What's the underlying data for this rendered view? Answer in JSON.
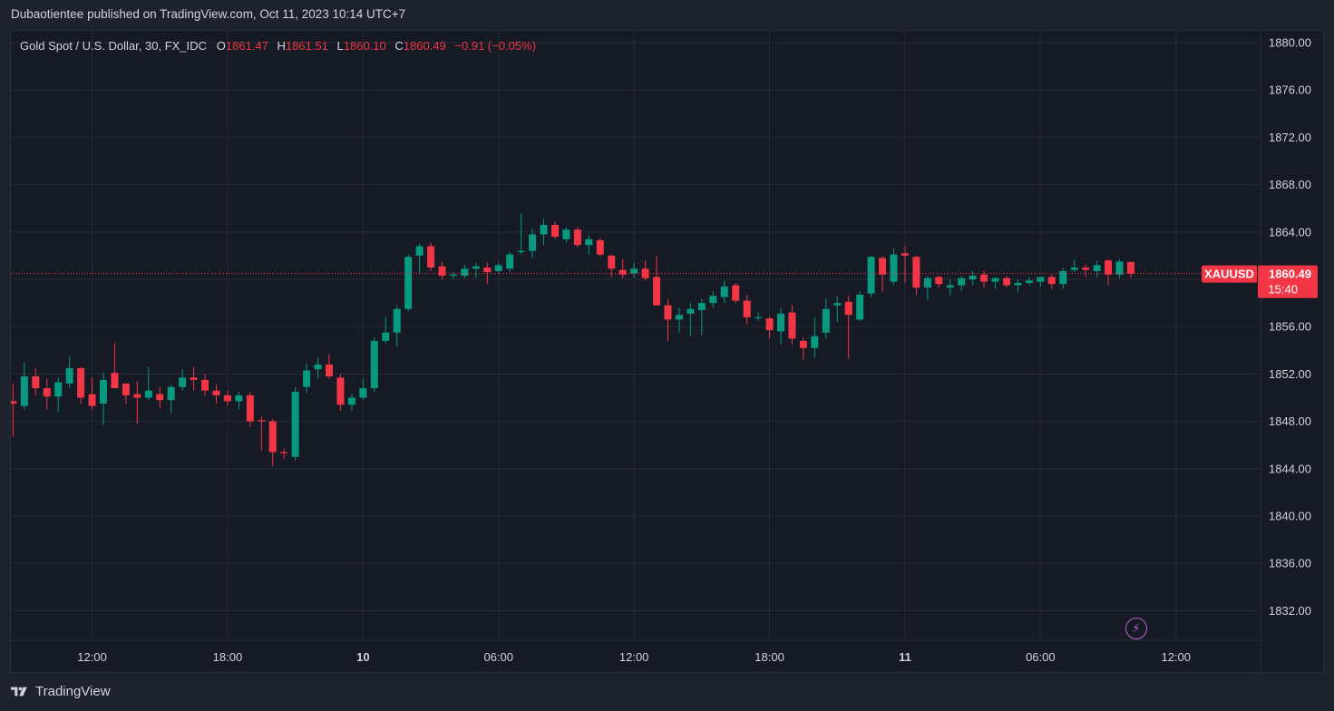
{
  "header": {
    "publish_text": "Dubaotientee published on TradingView.com, Oct 11, 2023 10:14 UTC+7"
  },
  "legend": {
    "symbol": "Gold Spot / U.S. Dollar, 30, FX_IDC",
    "o_label": "O",
    "o_value": "1861.47",
    "h_label": "H",
    "h_value": "1861.51",
    "l_label": "L",
    "l_value": "1860.10",
    "c_label": "C",
    "c_value": "1860.49",
    "change": "−0.91 (−0.05%)"
  },
  "price_tag": {
    "symbol": "XAUUSD",
    "price": "1860.49",
    "countdown": "15:40"
  },
  "footer": {
    "brand": "TradingView"
  },
  "icons": {
    "flash": "lightning-icon",
    "logo": "tradingview-logo"
  },
  "colors": {
    "up": "#089981",
    "down": "#f23645",
    "background": "#161a25",
    "grid": "#262a35",
    "text": "#d1d4dc"
  },
  "chart_data": {
    "type": "candlestick",
    "title": "Gold Spot / U.S. Dollar, 30, FX_IDC",
    "ylim": [
      1829.5,
      1881.0
    ],
    "y_ticks": [
      1832,
      1836,
      1840,
      1844,
      1848,
      1852,
      1856,
      1860,
      1864,
      1868,
      1872,
      1876,
      1880
    ],
    "x_ticks": [
      {
        "label": "12:00",
        "index": 7,
        "bold": false
      },
      {
        "label": "18:00",
        "index": 19,
        "bold": false
      },
      {
        "label": "10",
        "index": 31,
        "bold": true
      },
      {
        "label": "06:00",
        "index": 43,
        "bold": false
      },
      {
        "label": "12:00",
        "index": 55,
        "bold": false
      },
      {
        "label": "18:00",
        "index": 67,
        "bold": false
      },
      {
        "label": "11",
        "index": 79,
        "bold": true
      },
      {
        "label": "06:00",
        "index": 91,
        "bold": false
      },
      {
        "label": "12:00",
        "index": 103,
        "bold": false
      }
    ],
    "grid": true,
    "last_price": 1860.49,
    "candles": [
      {
        "o": 1849.7,
        "h": 1851.2,
        "l": 1846.7,
        "c": 1849.5
      },
      {
        "o": 1849.3,
        "h": 1853.0,
        "l": 1849.0,
        "c": 1851.8
      },
      {
        "o": 1851.8,
        "h": 1852.5,
        "l": 1850.2,
        "c": 1850.8
      },
      {
        "o": 1850.8,
        "h": 1851.6,
        "l": 1849.0,
        "c": 1850.1
      },
      {
        "o": 1850.1,
        "h": 1851.7,
        "l": 1848.8,
        "c": 1851.3
      },
      {
        "o": 1851.2,
        "h": 1853.5,
        "l": 1850.8,
        "c": 1852.5
      },
      {
        "o": 1852.5,
        "h": 1852.6,
        "l": 1849.5,
        "c": 1850.0
      },
      {
        "o": 1850.3,
        "h": 1851.7,
        "l": 1849.0,
        "c": 1849.3
      },
      {
        "o": 1849.5,
        "h": 1852.1,
        "l": 1847.7,
        "c": 1851.5
      },
      {
        "o": 1852.1,
        "h": 1854.6,
        "l": 1850.8,
        "c": 1850.8
      },
      {
        "o": 1851.2,
        "h": 1851.2,
        "l": 1849.5,
        "c": 1850.2
      },
      {
        "o": 1850.3,
        "h": 1851.4,
        "l": 1847.8,
        "c": 1850.0
      },
      {
        "o": 1850.0,
        "h": 1852.6,
        "l": 1849.8,
        "c": 1850.6
      },
      {
        "o": 1850.3,
        "h": 1850.9,
        "l": 1849.1,
        "c": 1849.8
      },
      {
        "o": 1849.8,
        "h": 1851.1,
        "l": 1848.7,
        "c": 1850.9
      },
      {
        "o": 1850.9,
        "h": 1852.4,
        "l": 1850.6,
        "c": 1851.7
      },
      {
        "o": 1851.7,
        "h": 1852.6,
        "l": 1850.6,
        "c": 1851.5
      },
      {
        "o": 1851.5,
        "h": 1852.0,
        "l": 1850.2,
        "c": 1850.6
      },
      {
        "o": 1850.6,
        "h": 1851.1,
        "l": 1849.5,
        "c": 1850.2
      },
      {
        "o": 1850.2,
        "h": 1850.6,
        "l": 1849.3,
        "c": 1849.7
      },
      {
        "o": 1849.7,
        "h": 1850.5,
        "l": 1849.0,
        "c": 1850.2
      },
      {
        "o": 1850.2,
        "h": 1850.5,
        "l": 1847.5,
        "c": 1848.0
      },
      {
        "o": 1848.1,
        "h": 1848.4,
        "l": 1845.5,
        "c": 1848.0
      },
      {
        "o": 1848.0,
        "h": 1848.2,
        "l": 1844.2,
        "c": 1845.4
      },
      {
        "o": 1845.4,
        "h": 1845.7,
        "l": 1844.8,
        "c": 1845.3
      },
      {
        "o": 1845.0,
        "h": 1850.9,
        "l": 1844.7,
        "c": 1850.5
      },
      {
        "o": 1850.9,
        "h": 1852.9,
        "l": 1850.4,
        "c": 1852.3
      },
      {
        "o": 1852.4,
        "h": 1853.4,
        "l": 1851.6,
        "c": 1852.8
      },
      {
        "o": 1852.8,
        "h": 1853.7,
        "l": 1851.6,
        "c": 1851.8
      },
      {
        "o": 1851.7,
        "h": 1852.0,
        "l": 1848.9,
        "c": 1849.4
      },
      {
        "o": 1849.4,
        "h": 1850.3,
        "l": 1848.9,
        "c": 1850.0
      },
      {
        "o": 1850.0,
        "h": 1851.6,
        "l": 1849.8,
        "c": 1850.8
      },
      {
        "o": 1850.8,
        "h": 1855.1,
        "l": 1850.5,
        "c": 1854.8
      },
      {
        "o": 1854.8,
        "h": 1856.8,
        "l": 1854.6,
        "c": 1855.5
      },
      {
        "o": 1855.5,
        "h": 1857.8,
        "l": 1854.3,
        "c": 1857.5
      },
      {
        "o": 1857.5,
        "h": 1862.1,
        "l": 1857.3,
        "c": 1861.9
      },
      {
        "o": 1862.0,
        "h": 1863.0,
        "l": 1860.5,
        "c": 1862.8
      },
      {
        "o": 1862.8,
        "h": 1863.1,
        "l": 1860.7,
        "c": 1861.0
      },
      {
        "o": 1861.1,
        "h": 1861.5,
        "l": 1860.0,
        "c": 1860.3
      },
      {
        "o": 1860.3,
        "h": 1860.6,
        "l": 1860.0,
        "c": 1860.4
      },
      {
        "o": 1860.3,
        "h": 1861.2,
        "l": 1860.1,
        "c": 1860.9
      },
      {
        "o": 1860.9,
        "h": 1861.4,
        "l": 1860.1,
        "c": 1861.1
      },
      {
        "o": 1861.0,
        "h": 1861.4,
        "l": 1859.6,
        "c": 1860.6
      },
      {
        "o": 1860.7,
        "h": 1861.4,
        "l": 1860.5,
        "c": 1861.2
      },
      {
        "o": 1860.9,
        "h": 1862.3,
        "l": 1860.6,
        "c": 1862.1
      },
      {
        "o": 1862.3,
        "h": 1865.6,
        "l": 1862.1,
        "c": 1862.4
      },
      {
        "o": 1862.4,
        "h": 1864.3,
        "l": 1861.8,
        "c": 1863.8
      },
      {
        "o": 1863.8,
        "h": 1865.1,
        "l": 1862.9,
        "c": 1864.6
      },
      {
        "o": 1864.6,
        "h": 1864.9,
        "l": 1863.4,
        "c": 1863.6
      },
      {
        "o": 1863.4,
        "h": 1864.4,
        "l": 1863.1,
        "c": 1864.2
      },
      {
        "o": 1864.2,
        "h": 1864.4,
        "l": 1862.7,
        "c": 1862.9
      },
      {
        "o": 1862.9,
        "h": 1863.7,
        "l": 1862.1,
        "c": 1863.4
      },
      {
        "o": 1863.3,
        "h": 1863.5,
        "l": 1861.9,
        "c": 1862.1
      },
      {
        "o": 1862.0,
        "h": 1862.1,
        "l": 1860.2,
        "c": 1860.9
      },
      {
        "o": 1860.8,
        "h": 1861.7,
        "l": 1860.1,
        "c": 1860.4
      },
      {
        "o": 1860.5,
        "h": 1861.4,
        "l": 1860.1,
        "c": 1860.9
      },
      {
        "o": 1860.9,
        "h": 1861.6,
        "l": 1859.9,
        "c": 1860.1
      },
      {
        "o": 1860.2,
        "h": 1862.0,
        "l": 1857.8,
        "c": 1857.8
      },
      {
        "o": 1857.8,
        "h": 1858.3,
        "l": 1854.8,
        "c": 1856.6
      },
      {
        "o": 1856.6,
        "h": 1857.6,
        "l": 1855.5,
        "c": 1857.0
      },
      {
        "o": 1857.1,
        "h": 1858.0,
        "l": 1855.2,
        "c": 1857.5
      },
      {
        "o": 1857.4,
        "h": 1858.4,
        "l": 1855.3,
        "c": 1858.0
      },
      {
        "o": 1858.0,
        "h": 1859.0,
        "l": 1857.6,
        "c": 1858.6
      },
      {
        "o": 1858.5,
        "h": 1859.9,
        "l": 1858.0,
        "c": 1859.4
      },
      {
        "o": 1859.5,
        "h": 1859.7,
        "l": 1858.0,
        "c": 1858.2
      },
      {
        "o": 1858.2,
        "h": 1858.7,
        "l": 1856.2,
        "c": 1856.8
      },
      {
        "o": 1856.8,
        "h": 1857.2,
        "l": 1856.5,
        "c": 1856.8
      },
      {
        "o": 1856.7,
        "h": 1856.9,
        "l": 1855.0,
        "c": 1855.7
      },
      {
        "o": 1855.6,
        "h": 1857.6,
        "l": 1854.5,
        "c": 1857.1
      },
      {
        "o": 1857.2,
        "h": 1857.8,
        "l": 1854.5,
        "c": 1855.0
      },
      {
        "o": 1854.8,
        "h": 1855.1,
        "l": 1853.2,
        "c": 1854.2
      },
      {
        "o": 1854.2,
        "h": 1856.8,
        "l": 1853.4,
        "c": 1855.2
      },
      {
        "o": 1855.5,
        "h": 1858.4,
        "l": 1855.0,
        "c": 1857.5
      },
      {
        "o": 1857.8,
        "h": 1858.6,
        "l": 1856.4,
        "c": 1858.0
      },
      {
        "o": 1858.1,
        "h": 1858.6,
        "l": 1853.3,
        "c": 1857.0
      },
      {
        "o": 1856.6,
        "h": 1859.0,
        "l": 1856.5,
        "c": 1858.7
      },
      {
        "o": 1858.8,
        "h": 1862.0,
        "l": 1858.5,
        "c": 1861.9
      },
      {
        "o": 1861.8,
        "h": 1862.0,
        "l": 1858.9,
        "c": 1860.4
      },
      {
        "o": 1859.8,
        "h": 1862.6,
        "l": 1859.5,
        "c": 1862.1
      },
      {
        "o": 1862.2,
        "h": 1862.8,
        "l": 1859.7,
        "c": 1862.0
      },
      {
        "o": 1861.9,
        "h": 1862.0,
        "l": 1858.7,
        "c": 1859.3
      },
      {
        "o": 1859.3,
        "h": 1860.3,
        "l": 1858.2,
        "c": 1860.1
      },
      {
        "o": 1860.2,
        "h": 1860.3,
        "l": 1859.3,
        "c": 1859.6
      },
      {
        "o": 1859.3,
        "h": 1860.0,
        "l": 1858.6,
        "c": 1859.5
      },
      {
        "o": 1859.5,
        "h": 1860.3,
        "l": 1859.0,
        "c": 1860.1
      },
      {
        "o": 1860.0,
        "h": 1860.7,
        "l": 1859.5,
        "c": 1860.3
      },
      {
        "o": 1860.4,
        "h": 1860.7,
        "l": 1859.3,
        "c": 1859.8
      },
      {
        "o": 1859.8,
        "h": 1860.2,
        "l": 1859.2,
        "c": 1860.1
      },
      {
        "o": 1860.1,
        "h": 1860.3,
        "l": 1859.3,
        "c": 1859.5
      },
      {
        "o": 1859.5,
        "h": 1860.0,
        "l": 1858.9,
        "c": 1859.7
      },
      {
        "o": 1859.7,
        "h": 1860.2,
        "l": 1859.5,
        "c": 1859.9
      },
      {
        "o": 1859.8,
        "h": 1860.2,
        "l": 1859.4,
        "c": 1860.2
      },
      {
        "o": 1860.2,
        "h": 1860.4,
        "l": 1859.2,
        "c": 1859.6
      },
      {
        "o": 1859.6,
        "h": 1861.0,
        "l": 1859.2,
        "c": 1860.7
      },
      {
        "o": 1860.8,
        "h": 1861.7,
        "l": 1860.6,
        "c": 1861.0
      },
      {
        "o": 1861.0,
        "h": 1861.3,
        "l": 1860.2,
        "c": 1860.8
      },
      {
        "o": 1860.7,
        "h": 1861.6,
        "l": 1860.2,
        "c": 1861.2
      },
      {
        "o": 1861.6,
        "h": 1861.7,
        "l": 1859.5,
        "c": 1860.4
      },
      {
        "o": 1860.4,
        "h": 1861.7,
        "l": 1860.1,
        "c": 1861.5
      },
      {
        "o": 1861.47,
        "h": 1861.51,
        "l": 1860.1,
        "c": 1860.49
      }
    ]
  }
}
